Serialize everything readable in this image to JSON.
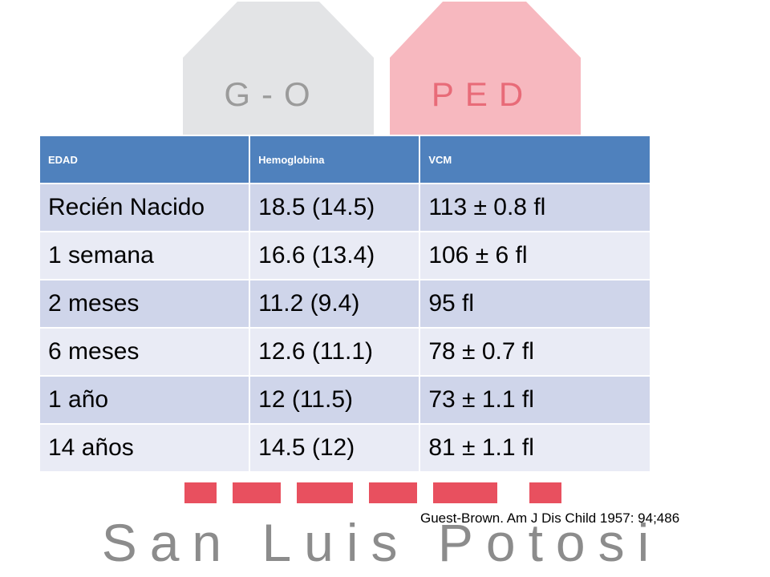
{
  "logo": {
    "left_badge": "G-O",
    "right_badge": "PED",
    "footer": "San Luis Potosi"
  },
  "table": {
    "header": [
      "EDAD",
      "Hemoglobina",
      "VCM"
    ],
    "rows": [
      [
        "Recién Nacido",
        "18.5 (14.5)",
        "113 ± 0.8 fl"
      ],
      [
        "1 semana",
        "16.6 (13.4)",
        "106 ± 6 fl"
      ],
      [
        "2 meses",
        "11.2 (9.4)",
        "95 fl"
      ],
      [
        "6 meses",
        "12.6 (11.1)",
        "78 ± 0.7 fl"
      ],
      [
        "1 año",
        "12 (11.5)",
        "73 ± 1.1 fl"
      ],
      [
        "14 años",
        "14.5 (12)",
        "81 ± 1.1 fl"
      ]
    ]
  },
  "citation": "Guest-Brown. Am J Dis Child 1957: 94;486"
}
